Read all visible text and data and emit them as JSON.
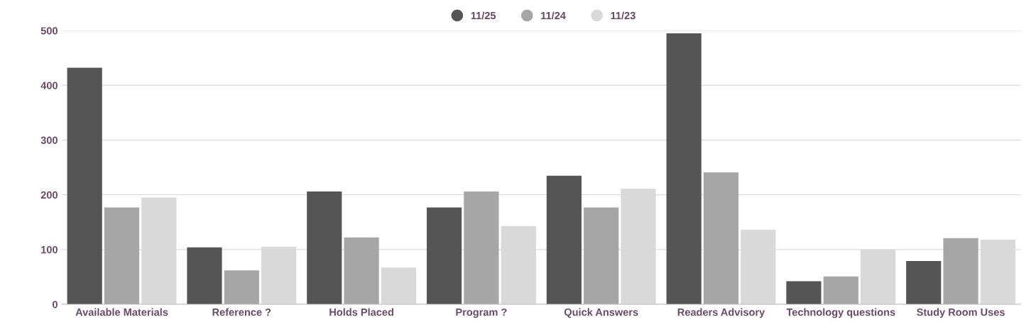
{
  "chart_data": {
    "type": "bar",
    "categories": [
      "Available Materials",
      "Reference ?",
      "Holds Placed",
      "Program ?",
      "Quick Answers",
      "Readers Advisory",
      "Technology questions",
      "Study Room Uses"
    ],
    "series": [
      {
        "name": "11/25",
        "color": "#555555",
        "values": [
          432,
          104,
          206,
          177,
          235,
          495,
          42,
          79
        ]
      },
      {
        "name": "11/24",
        "color": "#a6a6a6",
        "values": [
          177,
          62,
          122,
          206,
          177,
          241,
          51,
          121
        ]
      },
      {
        "name": "11/23",
        "color": "#d9d9d9",
        "values": [
          195,
          105,
          67,
          143,
          211,
          136,
          100,
          118
        ]
      }
    ],
    "ylim": [
      0,
      500
    ],
    "yticks": [
      0,
      100,
      200,
      300,
      400,
      500
    ],
    "grid": "y",
    "legend": "top"
  }
}
